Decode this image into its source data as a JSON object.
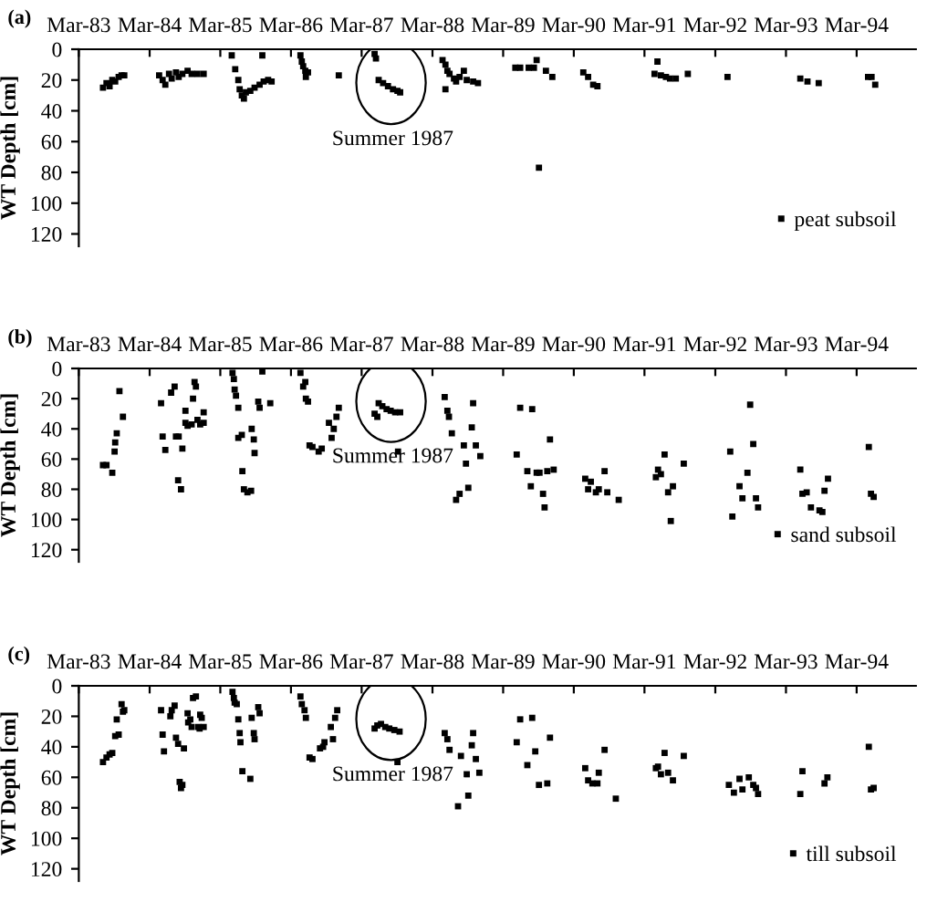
{
  "chart_data": [
    {
      "type": "scatter",
      "marker": "square",
      "title": "(a)",
      "ylabel": "WT Depth [cm]",
      "annotations": [
        "Summer 1987"
      ],
      "legend": "bottom right",
      "grid": false,
      "xlim": [
        "1983-03-01",
        "1995-01-01"
      ],
      "ylim": [
        128,
        0
      ],
      "yticks": [
        0,
        20,
        40,
        60,
        80,
        100,
        120
      ],
      "xticks": [
        {
          "value": "1983-03-01",
          "label": "Mar-83"
        },
        {
          "value": "1984-03-01",
          "label": "Mar-84"
        },
        {
          "value": "1985-03-01",
          "label": "Mar-85"
        },
        {
          "value": "1986-03-01",
          "label": "Mar-86"
        },
        {
          "value": "1987-03-01",
          "label": "Mar-87"
        },
        {
          "value": "1988-03-01",
          "label": "Mar-88"
        },
        {
          "value": "1989-03-01",
          "label": "Mar-89"
        },
        {
          "value": "1990-03-01",
          "label": "Mar-90"
        },
        {
          "value": "1991-03-01",
          "label": "Mar-91"
        },
        {
          "value": "1992-03-01",
          "label": "Mar-92"
        },
        {
          "value": "1993-03-01",
          "label": "Mar-93"
        },
        {
          "value": "1994-03-01",
          "label": "Mar-94"
        }
      ],
      "series": [
        {
          "name": "peat subsoil",
          "color": "#000000",
          "x": [
            "1983-07-04",
            "1983-07-22",
            "1983-08-07",
            "1983-08-21",
            "1983-09-05",
            "1983-09-23",
            "1983-10-08",
            "1983-10-22",
            "1984-04-19",
            "1984-05-07",
            "1984-05-21",
            "1984-06-09",
            "1984-06-23",
            "1984-07-15",
            "1984-07-29",
            "1984-08-17",
            "1984-09-13",
            "1984-10-04",
            "1984-11-03",
            "1984-12-05",
            "1985-04-29",
            "1985-05-17",
            "1985-06-02",
            "1985-06-09",
            "1985-06-20",
            "1985-07-01",
            "1985-07-11",
            "1985-08-03",
            "1985-08-25",
            "1985-09-20",
            "1985-10-11",
            "1985-11-03",
            "1985-11-21",
            "1985-10-04",
            "1986-04-19",
            "1986-04-26",
            "1986-05-03",
            "1986-05-14",
            "1986-05-17",
            "1986-05-28",
            "1986-11-03",
            "1987-05-07",
            "1987-05-14",
            "1987-05-28",
            "1987-06-20",
            "1987-07-15",
            "1987-08-10",
            "1987-09-02",
            "1987-09-16",
            "1988-04-22",
            "1988-05-07",
            "1988-05-17",
            "1988-05-28",
            "1988-06-20",
            "1988-07-01",
            "1988-07-19",
            "1988-08-10",
            "1988-08-25",
            "1988-09-27",
            "1988-10-22",
            "1988-05-07",
            "1989-05-03",
            "1989-05-28",
            "1989-07-11",
            "1989-08-07",
            "1989-08-21",
            "1989-10-08",
            "1989-11-10",
            "1989-09-02",
            "1990-04-19",
            "1990-05-14",
            "1990-06-09",
            "1990-07-01",
            "1991-05-07",
            "1991-04-22",
            "1991-05-25",
            "1991-06-20",
            "1991-07-11",
            "1991-08-10",
            "1991-10-11",
            "1992-05-03",
            "1993-05-14",
            "1993-06-20",
            "1993-08-17",
            "1994-04-29",
            "1994-05-17",
            "1994-06-05"
          ],
          "values": [
            25,
            22,
            24,
            20,
            21,
            18,
            17,
            17,
            17,
            20,
            23,
            16,
            19,
            15,
            18,
            16,
            14,
            16,
            16,
            16,
            4,
            13,
            20,
            26,
            30,
            32,
            28,
            27,
            25,
            23,
            21,
            20,
            21,
            4,
            4,
            8,
            11,
            14,
            18,
            15,
            17,
            3,
            6,
            20,
            22,
            24,
            26,
            27,
            28,
            7,
            10,
            14,
            16,
            19,
            21,
            18,
            14,
            20,
            21,
            22,
            26,
            12,
            12,
            12,
            12,
            7,
            14,
            18,
            77,
            15,
            18,
            23,
            24,
            8,
            16,
            17,
            18,
            19,
            19,
            16,
            18,
            19,
            21,
            22,
            18,
            18,
            23
          ]
        }
      ]
    },
    {
      "type": "scatter",
      "marker": "square",
      "title": "(b)",
      "ylabel": "WT Depth [cm]",
      "annotations": [
        "Summer 1987"
      ],
      "legend": "bottom right",
      "grid": false,
      "xlim": [
        "1983-03-01",
        "1995-01-01"
      ],
      "ylim": [
        128,
        0
      ],
      "yticks": [
        0,
        20,
        40,
        60,
        80,
        100,
        120
      ],
      "xticks": [
        {
          "value": "1983-03-01",
          "label": "Mar-83"
        },
        {
          "value": "1984-03-01",
          "label": "Mar-84"
        },
        {
          "value": "1985-03-01",
          "label": "Mar-85"
        },
        {
          "value": "1986-03-01",
          "label": "Mar-86"
        },
        {
          "value": "1987-03-01",
          "label": "Mar-87"
        },
        {
          "value": "1988-03-01",
          "label": "Mar-88"
        },
        {
          "value": "1989-03-01",
          "label": "Mar-89"
        },
        {
          "value": "1990-03-01",
          "label": "Mar-90"
        },
        {
          "value": "1991-03-01",
          "label": "Mar-91"
        },
        {
          "value": "1992-03-01",
          "label": "Mar-92"
        },
        {
          "value": "1993-03-01",
          "label": "Mar-93"
        },
        {
          "value": "1994-03-01",
          "label": "Mar-94"
        }
      ],
      "series": [
        {
          "name": "sand subsoil",
          "color": "#000000",
          "x": [
            "1983-07-04",
            "1983-07-22",
            "1983-08-21",
            "1983-09-27",
            "1983-10-15",
            "1983-09-05",
            "1983-09-13",
            "1983-09-02",
            "1984-04-29",
            "1984-05-07",
            "1984-05-21",
            "1984-06-20",
            "1984-07-08",
            "1984-07-15",
            "1984-07-29",
            "1984-08-17",
            "1984-09-02",
            "1984-09-02",
            "1984-09-13",
            "1984-10-04",
            "1984-10-11",
            "1984-10-19",
            "1984-10-26",
            "1984-11-03",
            "1984-11-17",
            "1984-12-05",
            "1984-12-05",
            "1984-07-26",
            "1984-08-10",
            "1985-05-03",
            "1985-05-10",
            "1985-05-14",
            "1985-05-21",
            "1985-06-02",
            "1985-06-02",
            "1985-06-20",
            "1985-06-23",
            "1985-07-01",
            "1985-07-19",
            "1985-08-07",
            "1985-08-10",
            "1985-08-21",
            "1985-08-25",
            "1985-09-13",
            "1985-09-20",
            "1985-10-04",
            "1985-11-14",
            "1986-04-19",
            "1986-05-03",
            "1986-05-14",
            "1986-05-17",
            "1986-05-28",
            "1986-06-05",
            "1986-06-20",
            "1986-07-22",
            "1986-08-07",
            "1986-09-13",
            "1986-09-27",
            "1986-10-08",
            "1986-10-22",
            "1986-11-03",
            "1987-05-07",
            "1987-05-21",
            "1987-05-28",
            "1987-06-16",
            "1987-07-08",
            "1987-07-29",
            "1987-08-21",
            "1987-09-16",
            "1987-09-05",
            "1988-05-03",
            "1988-05-17",
            "1988-05-25",
            "1988-06-09",
            "1988-07-01",
            "1988-07-19",
            "1988-08-10",
            "1988-08-21",
            "1988-09-02",
            "1988-09-20",
            "1988-09-27",
            "1988-10-11",
            "1988-11-03",
            "1989-05-28",
            "1989-07-29",
            "1989-05-10",
            "1989-10-29",
            "1989-07-04",
            "1989-08-21",
            "1989-09-05",
            "1989-10-15",
            "1989-11-17",
            "1989-07-22",
            "1989-09-23",
            "1989-10-01",
            "1990-04-29",
            "1990-05-28",
            "1990-05-14",
            "1990-06-23",
            "1990-07-08",
            "1990-08-21",
            "1990-08-07",
            "1990-10-19",
            "1991-05-10",
            "1991-05-25",
            "1991-04-29",
            "1991-06-13",
            "1991-07-01",
            "1991-07-26",
            "1991-07-15",
            "1991-09-20",
            "1992-05-17",
            "1992-05-28",
            "1992-07-04",
            "1992-07-19",
            "1992-08-14",
            "1992-08-28",
            "1992-09-13",
            "1992-09-27",
            "1992-10-08",
            "1993-05-14",
            "1993-05-25",
            "1993-06-16",
            "1993-07-08",
            "1993-08-21",
            "1993-09-05",
            "1993-09-16",
            "1993-10-04",
            "1994-05-03",
            "1994-05-14",
            "1994-05-28"
          ],
          "values": [
            64,
            64,
            69,
            15,
            32,
            49,
            43,
            55,
            23,
            45,
            54,
            16,
            12,
            45,
            45,
            53,
            28,
            36,
            38,
            37,
            20,
            9,
            12,
            34,
            37,
            29,
            36,
            74,
            80,
            3,
            7,
            14,
            18,
            26,
            46,
            44,
            68,
            80,
            82,
            81,
            40,
            47,
            56,
            22,
            26,
            2,
            23,
            3,
            12,
            9,
            20,
            22,
            51,
            52,
            55,
            53,
            36,
            46,
            40,
            32,
            26,
            30,
            32,
            23,
            25,
            27,
            28,
            29,
            29,
            55,
            19,
            28,
            32,
            43,
            87,
            83,
            51,
            63,
            79,
            39,
            23,
            51,
            58,
            26,
            27,
            57,
            47,
            68,
            69,
            69,
            68,
            67,
            78,
            83,
            92,
            73,
            75,
            80,
            82,
            80,
            82,
            68,
            87,
            67,
            70,
            72,
            57,
            82,
            78,
            101,
            63,
            55,
            98,
            78,
            86,
            69,
            24,
            50,
            86,
            92,
            67,
            83,
            82,
            92,
            94,
            95,
            81,
            73,
            52,
            83,
            85
          ]
        }
      ]
    },
    {
      "type": "scatter",
      "marker": "square",
      "title": "(c)",
      "ylabel": "WT Depth [cm]",
      "annotations": [
        "Summer 1987"
      ],
      "legend": "bottom right",
      "grid": false,
      "xlim": [
        "1983-03-01",
        "1995-01-01"
      ],
      "ylim": [
        128,
        0
      ],
      "yticks": [
        0,
        20,
        40,
        60,
        80,
        100,
        120
      ],
      "xticks": [
        {
          "value": "1983-03-01",
          "label": "Mar-83"
        },
        {
          "value": "1984-03-01",
          "label": "Mar-84"
        },
        {
          "value": "1985-03-01",
          "label": "Mar-85"
        },
        {
          "value": "1986-03-01",
          "label": "Mar-86"
        },
        {
          "value": "1987-03-01",
          "label": "Mar-87"
        },
        {
          "value": "1988-03-01",
          "label": "Mar-88"
        },
        {
          "value": "1989-03-01",
          "label": "Mar-89"
        },
        {
          "value": "1990-03-01",
          "label": "Mar-90"
        },
        {
          "value": "1991-03-01",
          "label": "Mar-91"
        },
        {
          "value": "1992-03-01",
          "label": "Mar-92"
        },
        {
          "value": "1993-03-01",
          "label": "Mar-93"
        },
        {
          "value": "1994-03-01",
          "label": "Mar-94"
        }
      ],
      "series": [
        {
          "name": "till subsoil",
          "color": "#000000",
          "x": [
            "1983-07-04",
            "1983-07-22",
            "1983-08-07",
            "1983-08-21",
            "1983-09-05",
            "1983-09-23",
            "1983-09-13",
            "1983-10-08",
            "1983-10-15",
            "1983-10-22",
            "1984-04-29",
            "1984-05-07",
            "1984-05-14",
            "1984-06-16",
            "1984-06-23",
            "1984-07-08",
            "1984-07-15",
            "1984-07-26",
            "1984-08-03",
            "1984-08-10",
            "1984-08-17",
            "1984-08-25",
            "1984-09-13",
            "1984-09-16",
            "1984-09-27",
            "1984-10-04",
            "1984-10-11",
            "1984-10-26",
            "1984-11-07",
            "1984-11-17",
            "1984-11-25",
            "1984-12-05",
            "1984-11-14",
            "1985-05-03",
            "1985-05-10",
            "1985-05-14",
            "1985-05-25",
            "1985-06-02",
            "1985-06-09",
            "1985-06-13",
            "1985-06-23",
            "1985-08-03",
            "1985-08-10",
            "1985-08-21",
            "1985-08-25",
            "1985-09-13",
            "1985-09-20",
            "1986-04-19",
            "1986-04-26",
            "1986-05-10",
            "1986-05-17",
            "1986-06-05",
            "1986-06-20",
            "1986-07-29",
            "1986-08-14",
            "1986-08-21",
            "1986-09-23",
            "1986-10-04",
            "1986-10-15",
            "1986-10-26",
            "1987-05-07",
            "1987-05-21",
            "1987-06-09",
            "1987-07-01",
            "1987-07-22",
            "1987-08-17",
            "1987-09-13",
            "1987-09-02",
            "1988-05-03",
            "1988-05-17",
            "1988-05-28",
            "1988-07-11",
            "1988-07-26",
            "1988-08-25",
            "1988-09-02",
            "1988-09-20",
            "1988-09-27",
            "1988-10-11",
            "1988-10-29",
            "1989-05-28",
            "1989-07-29",
            "1989-05-10",
            "1989-10-29",
            "1989-08-14",
            "1989-07-04",
            "1989-09-02",
            "1989-10-15",
            "1990-04-29",
            "1990-07-08",
            "1990-05-14",
            "1990-06-05",
            "1990-07-01",
            "1990-08-07",
            "1990-10-04",
            "1991-04-29",
            "1991-05-10",
            "1991-05-25",
            "1991-06-13",
            "1991-07-01",
            "1991-07-26",
            "1991-09-20",
            "1992-05-10",
            "1992-06-05",
            "1992-07-04",
            "1992-07-19",
            "1992-08-21",
            "1992-09-13",
            "1992-09-27",
            "1992-10-08",
            "1993-05-14",
            "1993-05-25",
            "1993-09-16",
            "1993-10-01",
            "1994-05-03",
            "1994-05-14",
            "1994-05-28"
          ],
          "values": [
            50,
            47,
            45,
            44,
            33,
            32,
            22,
            12,
            17,
            16,
            16,
            32,
            43,
            20,
            16,
            13,
            34,
            38,
            63,
            67,
            65,
            41,
            18,
            24,
            22,
            27,
            8,
            7,
            27,
            19,
            21,
            27,
            28,
            4,
            8,
            11,
            12,
            22,
            31,
            37,
            56,
            61,
            21,
            31,
            35,
            14,
            18,
            7,
            12,
            16,
            21,
            47,
            48,
            41,
            40,
            37,
            27,
            35,
            21,
            16,
            28,
            26,
            25,
            27,
            28,
            29,
            30,
            50,
            31,
            35,
            42,
            79,
            46,
            58,
            72,
            39,
            31,
            48,
            57,
            22,
            21,
            37,
            34,
            43,
            52,
            65,
            64,
            54,
            57,
            62,
            64,
            64,
            42,
            74,
            54,
            53,
            58,
            44,
            57,
            62,
            46,
            65,
            70,
            61,
            68,
            60,
            65,
            67,
            71,
            71,
            56,
            64,
            60,
            40,
            68,
            67
          ]
        }
      ]
    }
  ]
}
